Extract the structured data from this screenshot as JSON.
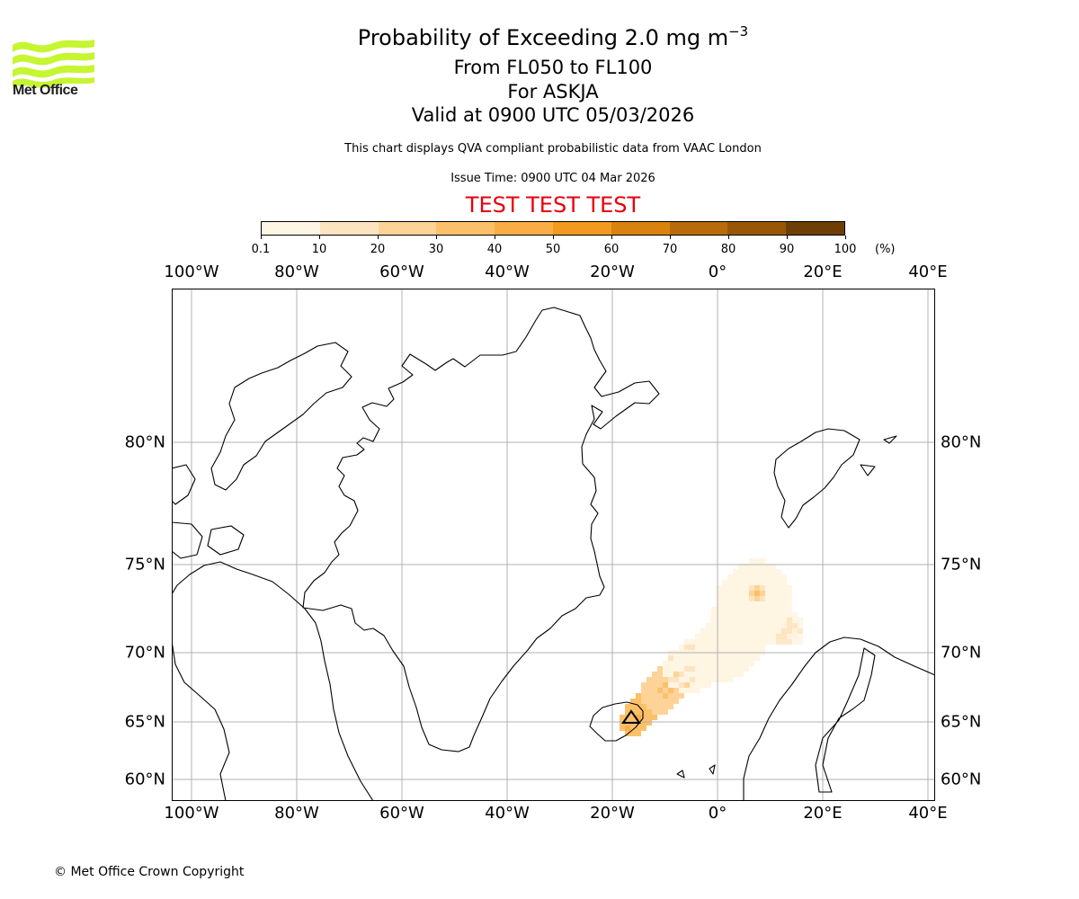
{
  "header": {
    "title_prefix": "Probability of Exceeding 2.0 mg m",
    "title_exponent": "−3",
    "line_levels": "From FL050 to FL100",
    "line_volcano": "For ASKJA",
    "line_valid": "Valid at 0900 UTC 05/03/2026",
    "disclaimer": "This chart displays QVA compliant probabilistic data from VAAC London",
    "issue_time": "Issue Time: 0900 UTC 04 Mar 2026",
    "test_banner": "TEST TEST TEST"
  },
  "logo": {
    "text": "Met Office",
    "color": "#c6f531"
  },
  "colorbar": {
    "ticks": [
      "0.1",
      "10",
      "20",
      "30",
      "40",
      "50",
      "60",
      "70",
      "80",
      "90",
      "100"
    ],
    "unit": "(%)",
    "colors": [
      "#fff5e3",
      "#fde4c0",
      "#fdd398",
      "#fcc06b",
      "#fbad45",
      "#f29a1e",
      "#d9820e",
      "#b86b09",
      "#985706",
      "#6e3f05"
    ]
  },
  "map": {
    "lon_labels": [
      "100°W",
      "80°W",
      "60°W",
      "40°W",
      "20°W",
      "0°",
      "20°E",
      "40°E"
    ],
    "lon_values": [
      -100,
      -80,
      -60,
      -40,
      -20,
      0,
      20,
      40
    ],
    "lat_labels": [
      "80°N",
      "75°N",
      "70°N",
      "65°N",
      "60°N"
    ],
    "lat_values": [
      80,
      75,
      70,
      65,
      60
    ],
    "volcano_marker": "triangle-icon"
  },
  "footer": {
    "copyright": "© Met Office Crown Copyright"
  }
}
